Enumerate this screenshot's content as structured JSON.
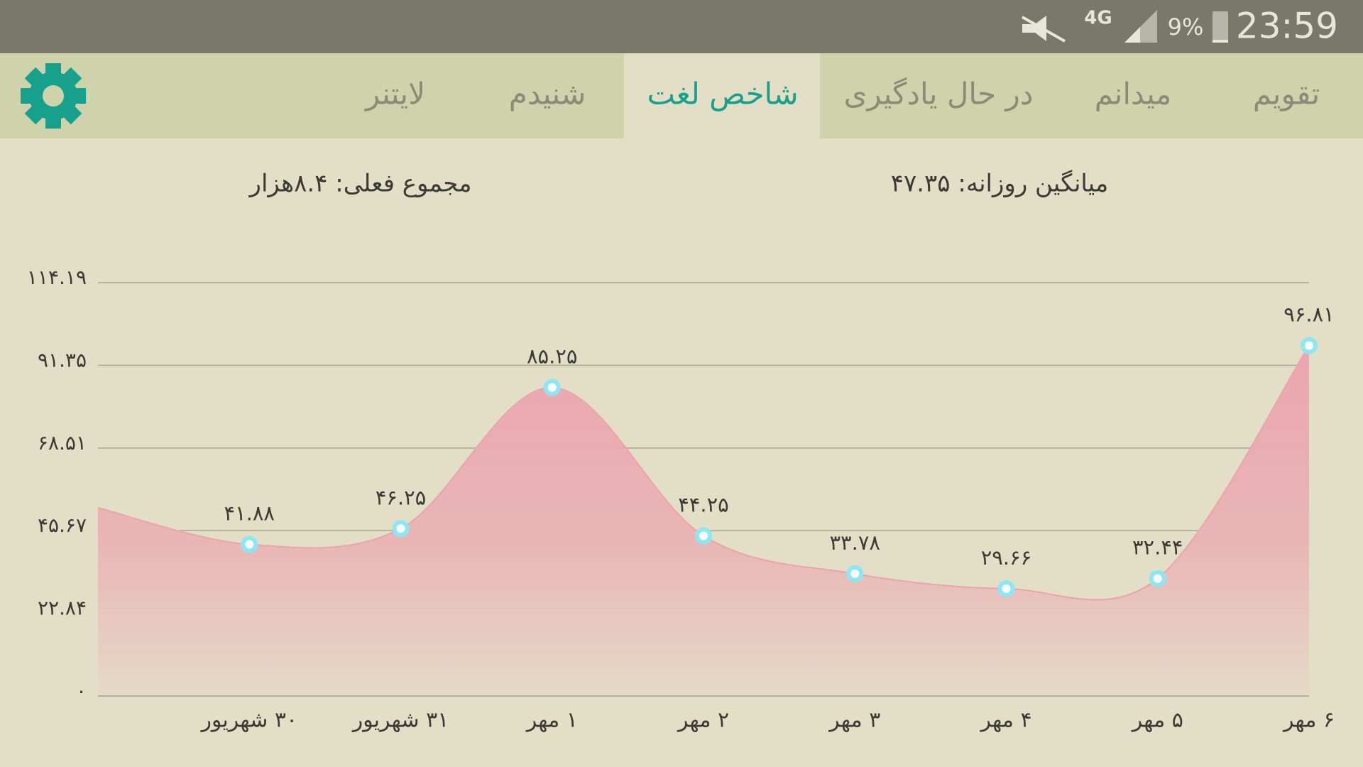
{
  "status_bar": {
    "network": "4G",
    "battery": "9%",
    "time": "23:59"
  },
  "tabs": [
    "تقویم",
    "میدانم",
    "در حال یادگیری",
    "شاخص لغت",
    "شنیدم",
    "لایتنر"
  ],
  "summary": {
    "daily_average": "میانگین روزانه: ۴۷.۳۵",
    "current_total": "مجموع فعلی: ۸.۴هزار"
  },
  "chart_data": {
    "type": "area",
    "categories": [
      null,
      "۳۰ شهریور",
      "۳۱ شهریور",
      "۱ مهر",
      "۲ مهر",
      "۳ مهر",
      "۴ مهر",
      "۵ مهر",
      "۶ مهر"
    ],
    "values": [
      52,
      41.88,
      46.25,
      85.25,
      44.25,
      33.78,
      29.66,
      32.44,
      96.81
    ],
    "value_labels": [
      null,
      "۴۱.۸۸",
      "۴۶.۲۵",
      "۸۵.۲۵",
      "۴۴.۲۵",
      "۳۳.۷۸",
      "۲۹.۶۶",
      "۳۲.۴۴",
      "۹۶.۸۱"
    ],
    "color": "#eca3ae",
    "ylim": [
      0,
      114.19
    ],
    "yticks": [
      {
        "value": 0,
        "label": "۰"
      },
      {
        "value": 22.84,
        "label": "۲۲.۸۴"
      },
      {
        "value": 45.67,
        "label": "۴۵.۶۷"
      },
      {
        "value": 68.51,
        "label": "۶۸.۵۱"
      },
      {
        "value": 91.35,
        "label": "۹۱.۳۵"
      },
      {
        "value": 114.19,
        "label": "۱۱۴.۱۹"
      }
    ],
    "grid": true
  }
}
